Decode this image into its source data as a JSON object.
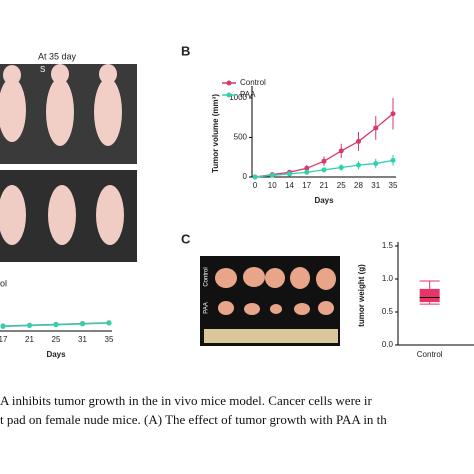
{
  "labels": {
    "panel_b": "B",
    "panel_c": "C",
    "photo_title": "At 35 day",
    "photo_mark": "S",
    "cut_legend": "ol",
    "tumor_row_1": "Control",
    "tumor_row_2": "PAA"
  },
  "caption": [
    "A inhibits tumor growth in the in vivo mice model. Cancer cells were ir",
    "t pad on female nude mice. (A) The effect of tumor growth with PAA in th"
  ],
  "chart_data": [
    {
      "type": "line",
      "ylabel": "Tumor volume (mm³)",
      "xlabel": "Days",
      "categories": [
        "0",
        "10",
        "14",
        "17",
        "21",
        "25",
        "28",
        "31",
        "35"
      ],
      "series": [
        {
          "name": "Control",
          "color": "#d9386c",
          "values": [
            0,
            30,
            60,
            110,
            200,
            330,
            450,
            620,
            800
          ],
          "errors": [
            0,
            15,
            25,
            40,
            60,
            90,
            120,
            150,
            200
          ]
        },
        {
          "name": "PAA",
          "color": "#2ed1b0",
          "values": [
            0,
            20,
            40,
            60,
            90,
            120,
            150,
            170,
            210
          ],
          "errors": [
            0,
            10,
            15,
            20,
            30,
            40,
            50,
            60,
            70
          ]
        }
      ],
      "ylim": [
        0,
        1100
      ],
      "yticks": [
        0,
        500,
        1000
      ]
    },
    {
      "type": "box",
      "ylabel": "tumor weight (g)",
      "categories": [
        "Control"
      ],
      "color": "#e8336b",
      "min": [
        0.62
      ],
      "q1": [
        0.65
      ],
      "median": [
        0.72
      ],
      "q3": [
        0.85
      ],
      "max": [
        0.97
      ],
      "ylim": [
        0,
        1.5
      ],
      "yticks": [
        {
          "value": 0,
          "label": "0.0"
        },
        0.5,
        {
          "value": 1,
          "label": "1.0"
        },
        1.5
      ]
    },
    {
      "type": "line",
      "xlabel": "Days",
      "categories": [
        "17",
        "21",
        "25",
        "31",
        "35"
      ],
      "series": [
        {
          "color": "#888888",
          "values": [
            60,
            70,
            80,
            90,
            100
          ],
          "errors": [
            20,
            20,
            20,
            25,
            25
          ]
        },
        {
          "color": "#2ed1b0",
          "values": [
            55,
            65,
            75,
            85,
            95
          ],
          "errors": [
            20,
            20,
            20,
            25,
            25
          ]
        }
      ],
      "ylim": [
        0,
        1100
      ]
    }
  ]
}
